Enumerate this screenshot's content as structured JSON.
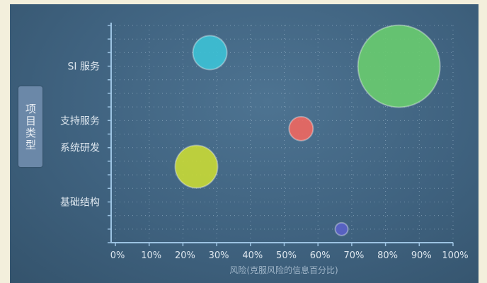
{
  "chart_data": {
    "type": "scatter",
    "xlabel": "风险(克服风险的信息百分比)",
    "ylabel": "项目类型",
    "xlim": [
      0,
      100
    ],
    "x_ticks": [
      "0%",
      "10%",
      "20%",
      "30%",
      "40%",
      "50%",
      "60%",
      "70%",
      "80%",
      "90%",
      "100%"
    ],
    "categories": [
      "SI 服务",
      "支持服务",
      "系统研发",
      "基础结构"
    ],
    "grid": true,
    "bubbles": [
      {
        "x": 28,
        "y": 7.0,
        "r": 24,
        "color": "#3cc2d6"
      },
      {
        "x": 84,
        "y": 6.5,
        "r": 58,
        "color": "#69cc6f"
      },
      {
        "x": 55,
        "y": 4.2,
        "r": 17,
        "color": "#f0675f"
      },
      {
        "x": 24,
        "y": 2.8,
        "r": 30,
        "color": "#c9da35"
      },
      {
        "x": 67,
        "y": 0.5,
        "r": 9,
        "color": "#5a62c8"
      }
    ],
    "category_positions": [
      6.5,
      4.5,
      3.5,
      1.5
    ],
    "ylim": [
      0,
      8
    ]
  }
}
